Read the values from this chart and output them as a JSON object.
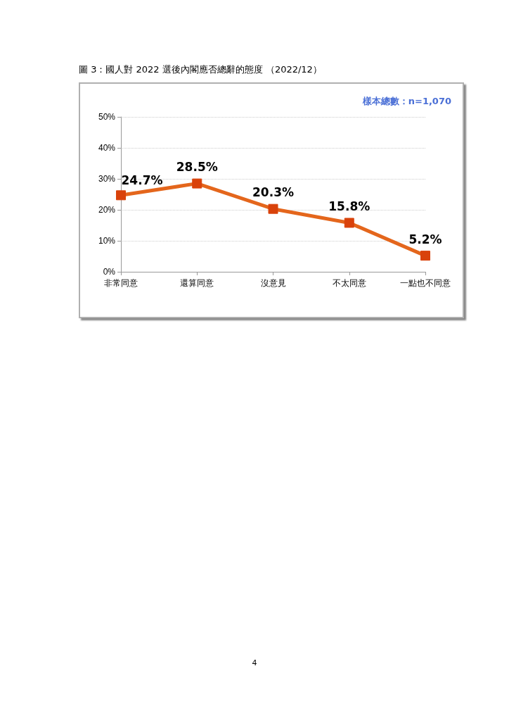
{
  "chart_data": {
    "type": "line",
    "title": "圖 3：國人對 2022 選後內閣應否總辭的態度 （2022/12）",
    "categories": [
      "非常同意",
      "還算同意",
      "沒意見",
      "不太同意",
      "一點也不同意"
    ],
    "series": [
      {
        "color": "#e4661c",
        "values": [
          24.7,
          28.5,
          20.3,
          15.8,
          5.2
        ]
      }
    ],
    "ylim": [
      0,
      50
    ],
    "yticks": [
      {
        "value": 0,
        "label": "0%"
      },
      {
        "value": 10,
        "label": "10%"
      },
      {
        "value": 20,
        "label": "20%"
      },
      {
        "value": 30,
        "label": "30%"
      },
      {
        "value": 40,
        "label": "40%"
      },
      {
        "value": 50,
        "label": "50%"
      }
    ],
    "grid": "y",
    "marker": "square",
    "line_style": "solid",
    "value_labels": [
      "24.7%",
      "28.5%",
      "20.3%",
      "15.8%",
      "5.2%"
    ],
    "annotations": [
      "樣本總數：n=1,070",
      "4"
    ]
  }
}
